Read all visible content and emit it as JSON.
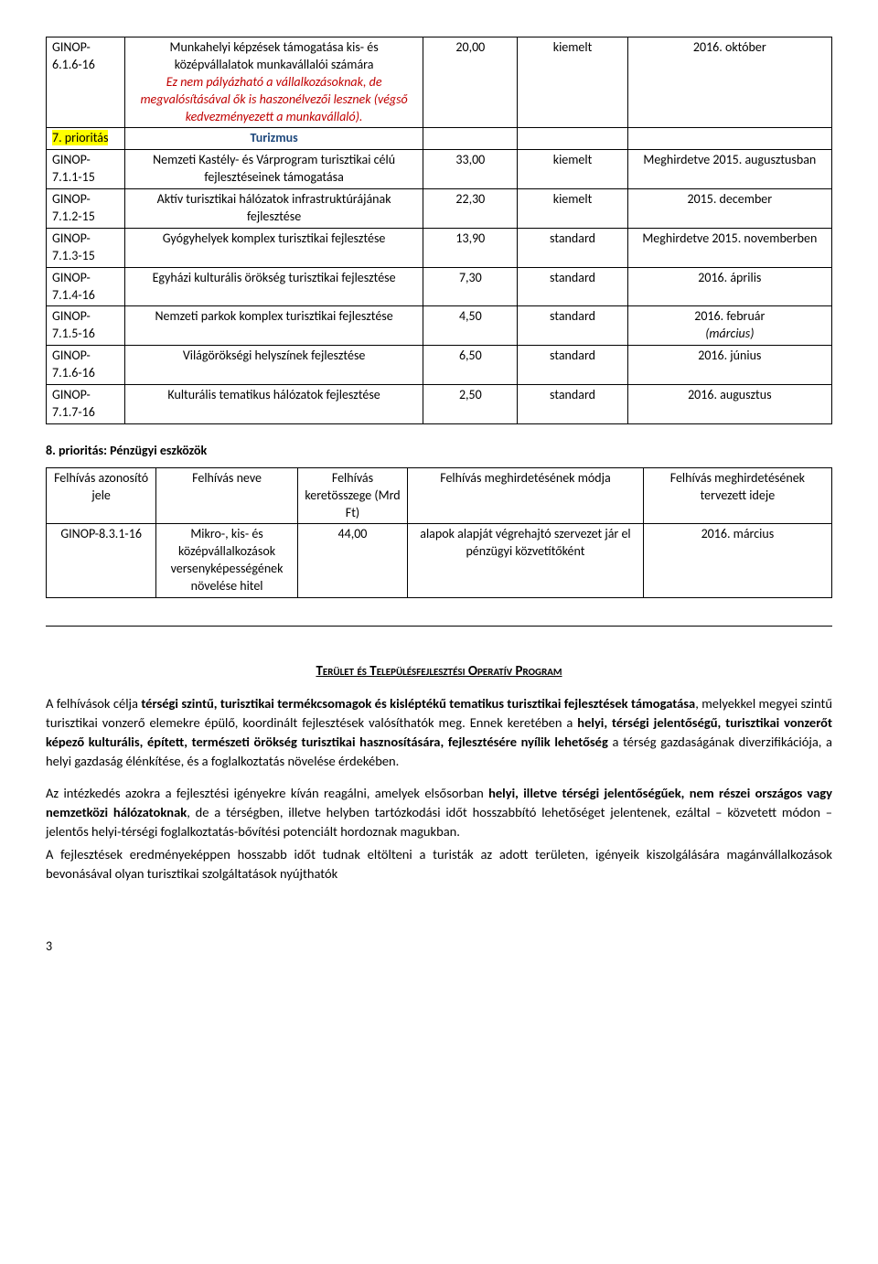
{
  "table1": {
    "rows": [
      {
        "code": "GINOP-6.1.6-16",
        "desc_main": "Munkahelyi képzések támogatása kis- és középvállalatok munkavállalói számára",
        "desc_note": "Ez nem pályázható a vállalkozásoknak, de megvalósításával ők is haszonélvezői lesznek (végső kedvezményezett a munkavállaló).",
        "amount": "20,00",
        "mode": "kiemelt",
        "schedule": "2016. október"
      },
      {
        "code": "7. prioritás",
        "desc_main": "Turizmus",
        "desc_note": "",
        "amount": "",
        "mode": "",
        "schedule": "",
        "is_priority": true
      },
      {
        "code": "GINOP-7.1.1-15",
        "desc_main": "Nemzeti Kastély- és Várprogram turisztikai célú fejlesztéseinek támogatása",
        "desc_note": "",
        "amount": "33,00",
        "mode": "kiemelt",
        "schedule": "Meghirdetve 2015. augusztusban"
      },
      {
        "code": "GINOP-7.1.2-15",
        "desc_main": "Aktív turisztikai hálózatok infrastruktúrájának fejlesztése",
        "desc_note": "",
        "amount": "22,30",
        "mode": "kiemelt",
        "schedule": "2015. december"
      },
      {
        "code": "GINOP-7.1.3-15",
        "desc_main": "Gyógyhelyek komplex turisztikai fejlesztése",
        "desc_note": "",
        "amount": "13,90",
        "mode": "standard",
        "schedule": "Meghirdetve 2015. novemberben"
      },
      {
        "code": "GINOP-7.1.4-16",
        "desc_main": "Egyházi kulturális örökség turisztikai fejlesztése",
        "desc_note": "",
        "amount": "7,30",
        "mode": "standard",
        "schedule": "2016. április"
      },
      {
        "code": "GINOP-7.1.5-16",
        "desc_main": "Nemzeti parkok komplex turisztikai fejlesztése",
        "desc_note": "",
        "amount": "4,50",
        "mode": "standard",
        "schedule_main": "2016. február",
        "schedule_note": "(március)"
      },
      {
        "code": "GINOP-7.1.6-16",
        "desc_main": "Világörökségi helyszínek fejlesztése",
        "desc_note": "",
        "amount": "6,50",
        "mode": "standard",
        "schedule": "2016. június"
      },
      {
        "code": "GINOP-7.1.7-16",
        "desc_main": "Kulturális tematikus hálózatok fejlesztése",
        "desc_note": "",
        "amount": "2,50",
        "mode": "standard",
        "schedule": "2016. augusztus"
      }
    ]
  },
  "section8_title": "8. prioritás: Pénzügyi eszközök",
  "table2": {
    "headers": {
      "c0": "Felhívás azonosító jele",
      "c1": "Felhívás neve",
      "c2": "Felhívás keretösszege (Mrd Ft)",
      "c3": "Felhívás meghirdetésének módja",
      "c4": "Felhívás meghirdetésének tervezett ideje"
    },
    "row": {
      "c0": "GINOP-8.3.1-16",
      "c1": "Mikro-, kis- és középvállalkozások versenyképességének növelése hitel",
      "c2": "44,00",
      "c3": "alapok alapját végrehajtó szervezet jár el pénzügyi közvetítőként",
      "c4": "2016. március"
    }
  },
  "program_title": "Terület és Településfejlesztési Operatív Program",
  "para1": {
    "t0": "A felhívások célja ",
    "b1": "térségi szintű, turisztikai termékcsomagok és kisléptékű tematikus turisztikai fejlesztések támogatása",
    "t2": ", melyekkel megyei szintű turisztikai vonzerő elemekre épülő, koordinált fejlesztések valósíthatók meg. Ennek keretében a ",
    "b3": "helyi, térségi jelentőségű, turisztikai vonzerőt képező kulturális, épített, természeti örökség turisztikai hasznosítására, fejlesztésére nyílik lehetőség",
    "t4": " a térség gazdaságának diverzifikációja, a helyi gazdaság élénkítése, és a foglalkoztatás növelése érdekében."
  },
  "para2": {
    "t0": "Az intézkedés azokra a fejlesztési igényekre kíván reagálni, amelyek elsősorban ",
    "b1": "helyi, illetve térségi jelentőségűek, nem részei országos vagy nemzetközi hálózatoknak",
    "t2": ", de a térségben, illetve helyben tartózkodási időt hosszabbító lehetőséget jelentenek, ezáltal – közvetett módon – jelentős helyi-térségi foglalkoztatás-bővítési potenciált hordoznak magukban."
  },
  "para3": "A fejlesztések eredményeképpen hosszabb időt tudnak eltölteni a turisták az adott területen, igényeik kiszolgálására magánvállalkozások bevonásával olyan turisztikai szolgáltatások nyújthatók",
  "page_number": "3"
}
